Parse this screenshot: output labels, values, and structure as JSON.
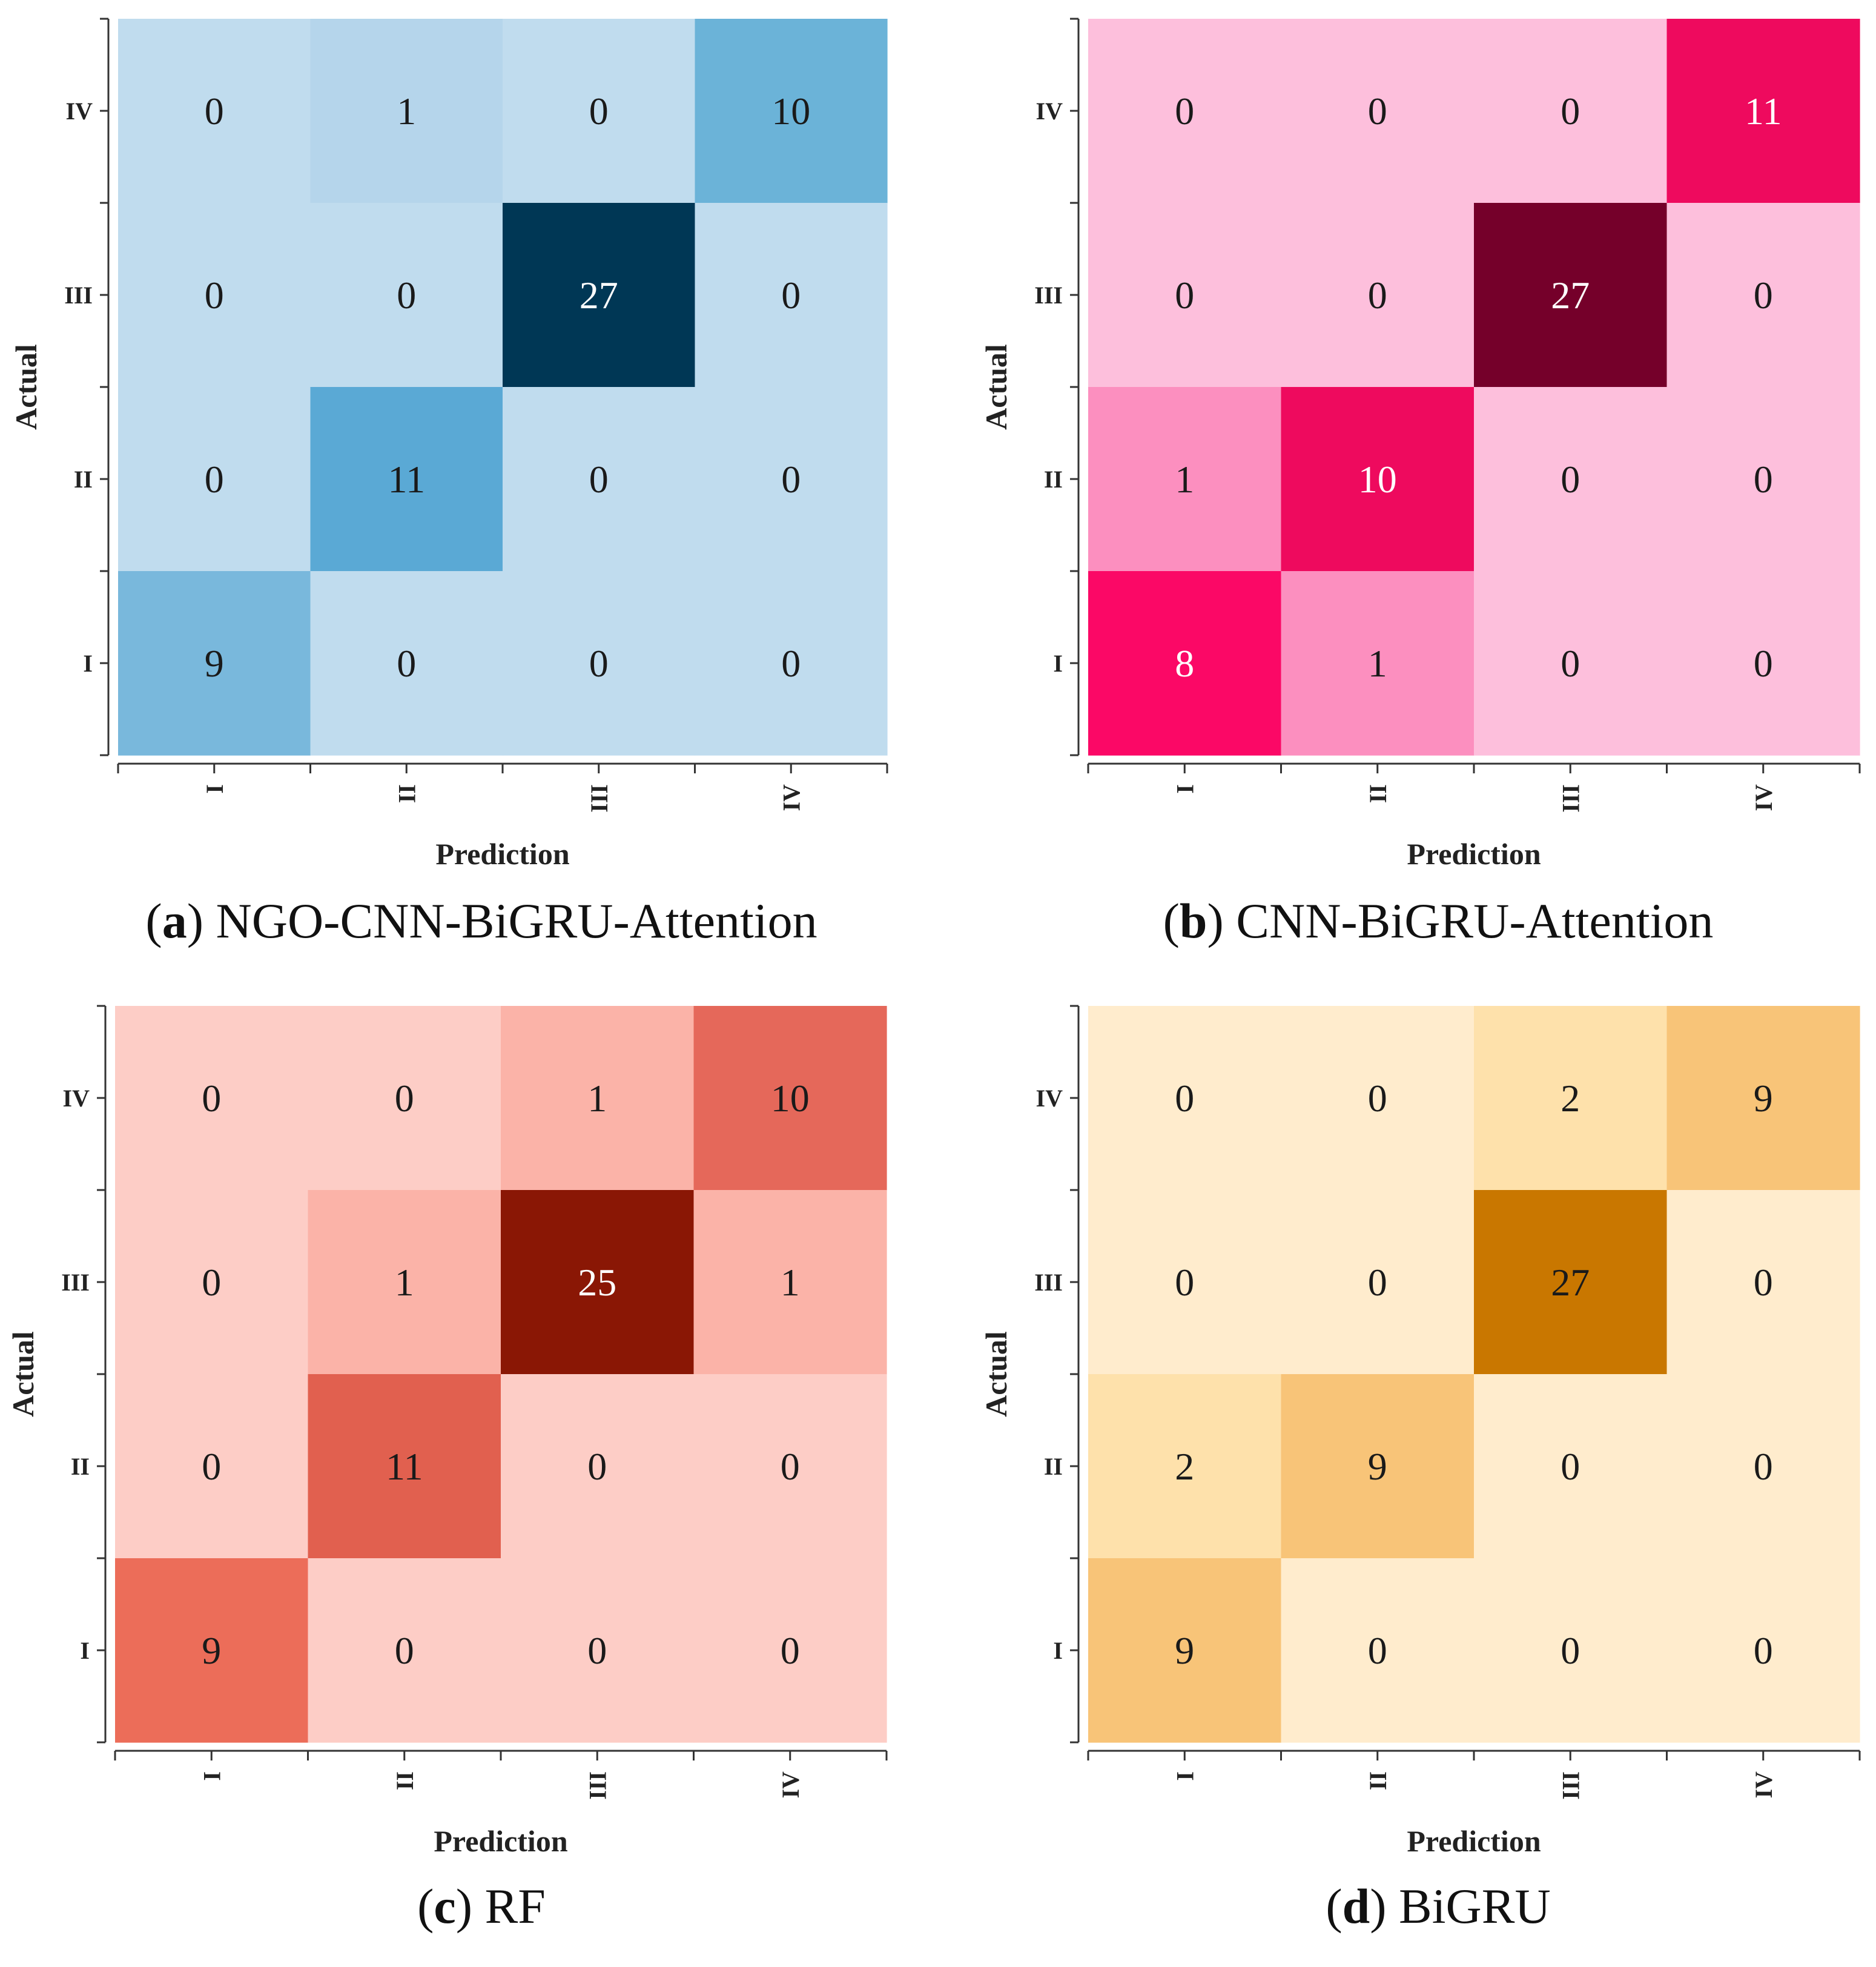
{
  "axis_labels": {
    "x": "Prediction",
    "y": "Actual"
  },
  "chart_data": [
    {
      "type": "heatmap",
      "panel_letter": "a",
      "caption_open": "(",
      "caption_close": ")",
      "caption_text": "NGO-CNN-BiGRU-Attention",
      "xlabel": "Prediction",
      "ylabel": "Actual",
      "x_categories": [
        "I",
        "II",
        "III",
        "IV"
      ],
      "y_categories": [
        "IV",
        "III",
        "II",
        "I"
      ],
      "matrix": [
        [
          0,
          1,
          0,
          10
        ],
        [
          0,
          0,
          27,
          0
        ],
        [
          0,
          11,
          0,
          0
        ],
        [
          9,
          0,
          0,
          0
        ]
      ],
      "color_low": "#c0dcee",
      "color_high": "#003755",
      "colors": {
        "0": "#c0dcee",
        "1": "#b5d5eb",
        "9": "#79b8dc",
        "10": "#6bb3d8",
        "11": "#5aa9d5",
        "27": "#003755"
      }
    },
    {
      "type": "heatmap",
      "panel_letter": "b",
      "caption_open": "(",
      "caption_close": ")",
      "caption_text": "CNN-BiGRU-Attention",
      "xlabel": "Prediction",
      "ylabel": "Actual",
      "x_categories": [
        "I",
        "II",
        "III",
        "IV"
      ],
      "y_categories": [
        "IV",
        "III",
        "II",
        "I"
      ],
      "matrix": [
        [
          0,
          0,
          0,
          11
        ],
        [
          0,
          0,
          27,
          0
        ],
        [
          1,
          10,
          0,
          0
        ],
        [
          8,
          1,
          0,
          0
        ]
      ],
      "color_low": "#fdbfdc",
      "color_high": "#75002a",
      "colors": {
        "0": "#fdbfdc",
        "1": "#fc8fbf",
        "8": "#fb0866",
        "10": "#ee0a5e",
        "11": "#ee0a5e",
        "27": "#75002a"
      }
    },
    {
      "type": "heatmap",
      "panel_letter": "c",
      "caption_open": "(",
      "caption_close": ")",
      "caption_text": "RF",
      "xlabel": "Prediction",
      "ylabel": "Actual",
      "x_categories": [
        "I",
        "II",
        "III",
        "IV"
      ],
      "y_categories": [
        "IV",
        "III",
        "II",
        "I"
      ],
      "matrix": [
        [
          0,
          0,
          1,
          10
        ],
        [
          0,
          1,
          25,
          1
        ],
        [
          0,
          11,
          0,
          0
        ],
        [
          9,
          0,
          0,
          0
        ]
      ],
      "color_low": "#fdcdc6",
      "color_high": "#8a1705",
      "colors": {
        "0": "#fdcdc6",
        "1": "#fbb3a8",
        "9": "#ec6d59",
        "10": "#e5685a",
        "11": "#e1604f",
        "25": "#8a1705"
      }
    },
    {
      "type": "heatmap",
      "panel_letter": "d",
      "caption_open": "(",
      "caption_close": ")",
      "caption_text": "BiGRU",
      "xlabel": "Prediction",
      "ylabel": "Actual",
      "x_categories": [
        "I",
        "II",
        "III",
        "IV"
      ],
      "y_categories": [
        "IV",
        "III",
        "II",
        "I"
      ],
      "matrix": [
        [
          0,
          0,
          2,
          9
        ],
        [
          0,
          0,
          27,
          0
        ],
        [
          2,
          9,
          0,
          0
        ],
        [
          9,
          0,
          0,
          0
        ]
      ],
      "color_low": "#ffeccd",
      "color_high": "#c97700",
      "colors": {
        "0": "#ffeccd",
        "2": "#fee1ab",
        "9": "#f8c478",
        "27": "#c97700"
      }
    }
  ]
}
